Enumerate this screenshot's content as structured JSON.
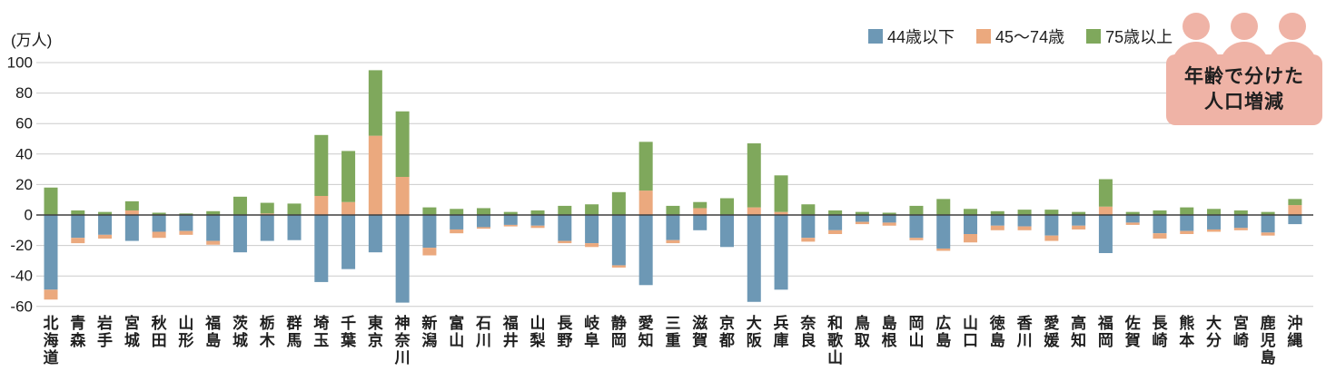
{
  "unit_label": "(万人)",
  "badge": {
    "line1": "年齢で分けた",
    "line2": "人口増減",
    "bg": "#efb3a6"
  },
  "legend": {
    "position": "top-right"
  },
  "chart_data": {
    "type": "bar",
    "stacked": true,
    "title": "年齢で分けた人口増減",
    "xlabel": "",
    "ylabel": "万人",
    "ylim": [
      -60,
      100
    ],
    "ytick_step": 20,
    "grid": true,
    "legend_position": "top-right",
    "colors": {
      "under44": "#6d98b5",
      "mid4574": "#eba97e",
      "over75": "#7fa85c",
      "gridline": "#cccccc",
      "zero_line": "#3f3f3f",
      "badge_pink": "#efb3a6"
    },
    "categories": [
      "北海道",
      "青森",
      "岩手",
      "宮城",
      "秋田",
      "山形",
      "福島",
      "茨城",
      "栃木",
      "群馬",
      "埼玉",
      "千葉",
      "東京",
      "神奈川",
      "新潟",
      "富山",
      "石川",
      "福井",
      "山梨",
      "長野",
      "岐阜",
      "静岡",
      "愛知",
      "三重",
      "滋賀",
      "京都",
      "大阪",
      "兵庫",
      "奈良",
      "和歌山",
      "鳥取",
      "島根",
      "岡山",
      "広島",
      "山口",
      "徳島",
      "香川",
      "愛媛",
      "高知",
      "福岡",
      "佐賀",
      "長崎",
      "熊本",
      "大分",
      "宮崎",
      "鹿児島",
      "沖縄"
    ],
    "series": [
      {
        "name": "44歳以下",
        "color": "#6d98b5",
        "values": [
          -49,
          -15,
          -13,
          -17,
          -11,
          -10.5,
          -17,
          -24.5,
          -17,
          -16.5,
          -44,
          -35.5,
          -24.5,
          -57.5,
          -21.5,
          -9.5,
          -8,
          -6.5,
          -7,
          -17,
          -18.5,
          -33,
          -46,
          -16.5,
          -10,
          -21,
          -57,
          -49,
          -15,
          -10,
          -4.5,
          -5,
          -15,
          -22,
          -12.5,
          -7,
          -7.5,
          -13.5,
          -7,
          -25,
          -5,
          -12,
          -10.5,
          -9.5,
          -8.5,
          -11.5,
          -6
        ]
      },
      {
        "name": "45〜74歳",
        "color": "#eba97e",
        "values": [
          -6.5,
          -3.5,
          -2.5,
          3,
          -4,
          -2.5,
          -2.5,
          0,
          1,
          0,
          12.5,
          8.5,
          52,
          25,
          -5,
          -2.5,
          -1,
          -1,
          -1.5,
          -1.5,
          -2.5,
          -1.5,
          16,
          -2,
          4.5,
          0,
          5,
          2,
          -2.5,
          -2.5,
          -1.5,
          -2,
          -1.5,
          -1.5,
          -5.5,
          -3,
          -2.5,
          -3.5,
          -2.5,
          5.5,
          -1.5,
          -3.5,
          -2,
          -1.5,
          -1.5,
          -2,
          6.5
        ]
      },
      {
        "name": "75歳以上",
        "color": "#7fa85c",
        "values": [
          18,
          3,
          2,
          6,
          1.5,
          1,
          2.5,
          12,
          7,
          7.5,
          40,
          33.5,
          43,
          43,
          5,
          4,
          4.5,
          2,
          3,
          6,
          7,
          15,
          32,
          6,
          4,
          11,
          42,
          24,
          7,
          3,
          2,
          1.5,
          6,
          10.5,
          4,
          2.5,
          3.5,
          3.5,
          2,
          18,
          2,
          3,
          5,
          4,
          3,
          2,
          4
        ]
      }
    ],
    "ytick_labels": [
      "100",
      "80",
      "60",
      "40",
      "20",
      "0",
      "-20",
      "-40",
      "-60"
    ]
  }
}
